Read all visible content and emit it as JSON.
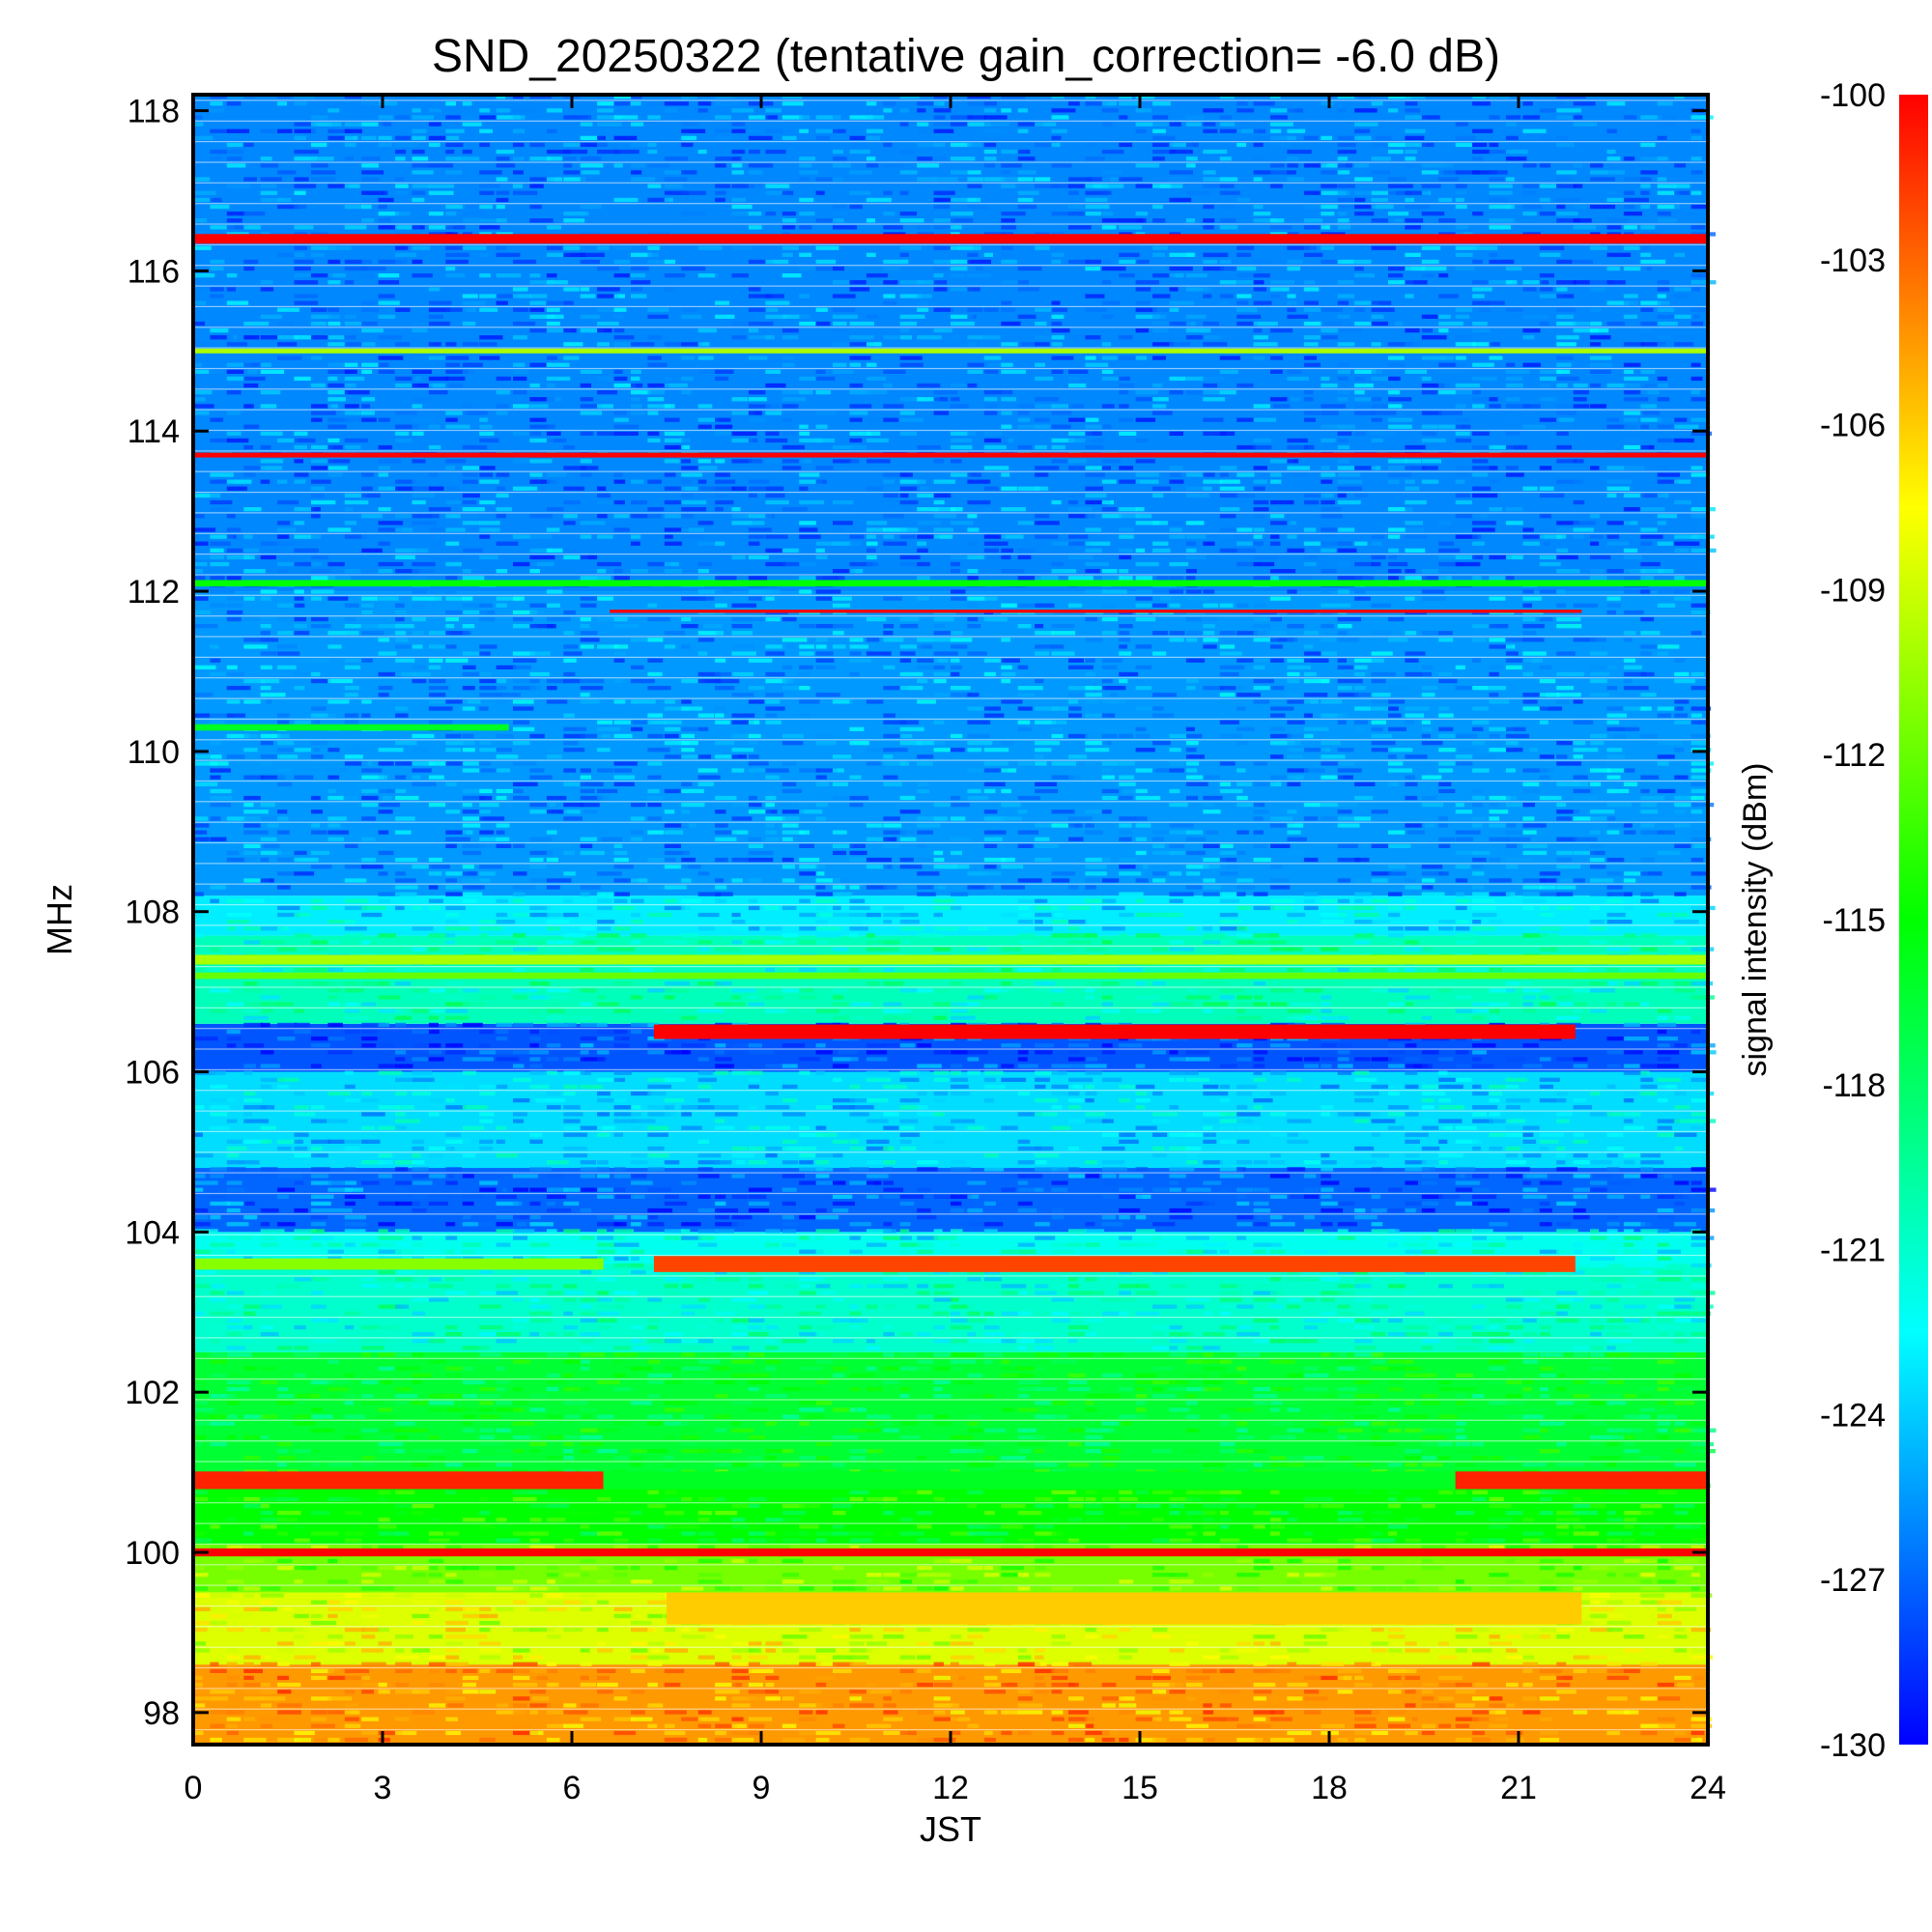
{
  "chart_data": {
    "type": "heatmap",
    "title": "SND_20250322 (tentative gain_correction= -6.0 dB)",
    "xlabel": "JST",
    "ylabel": "MHz",
    "colorbar_label": "signal intensity (dBm)",
    "xlim": [
      0,
      24
    ],
    "ylim": [
      97.6,
      118.2
    ],
    "clim": [
      -130,
      -100
    ],
    "x_ticks": [
      0,
      3,
      6,
      9,
      12,
      15,
      18,
      21,
      24
    ],
    "y_ticks": [
      98,
      100,
      102,
      104,
      106,
      108,
      110,
      112,
      114,
      116,
      118
    ],
    "colorbar_ticks": [
      -100,
      -103,
      -106,
      -109,
      -112,
      -115,
      -118,
      -121,
      -124,
      -127,
      -130
    ],
    "colormap": [
      "#0000ff",
      "#0080ff",
      "#00ffff",
      "#00ff80",
      "#00ff00",
      "#80ff00",
      "#ffff00",
      "#ff8000",
      "#ff0000"
    ],
    "background_bands": [
      {
        "f0": 97.6,
        "f1": 98.6,
        "level": -104.5
      },
      {
        "f0": 98.6,
        "f1": 99.5,
        "level": -108.5
      },
      {
        "f0": 99.5,
        "f1": 100.1,
        "level": -111.5
      },
      {
        "f0": 100.1,
        "f1": 101.0,
        "level": -115.0
      },
      {
        "f0": 101.0,
        "f1": 102.5,
        "level": -116.5
      },
      {
        "f0": 102.5,
        "f1": 103.6,
        "level": -121.0
      },
      {
        "f0": 103.6,
        "f1": 104.0,
        "level": -122.0
      },
      {
        "f0": 104.0,
        "f1": 104.8,
        "level": -127.0
      },
      {
        "f0": 104.8,
        "f1": 106.0,
        "level": -123.5
      },
      {
        "f0": 106.0,
        "f1": 106.6,
        "level": -127.5
      },
      {
        "f0": 106.6,
        "f1": 107.7,
        "level": -120.5
      },
      {
        "f0": 107.7,
        "f1": 108.2,
        "level": -123.0
      },
      {
        "f0": 108.2,
        "f1": 112.0,
        "level": -125.5
      },
      {
        "f0": 112.0,
        "f1": 118.2,
        "level": -126.0
      }
    ],
    "signals": [
      {
        "freq": 116.4,
        "t_start": 0,
        "t_end": 24,
        "level": -100,
        "bw": 0.12
      },
      {
        "freq": 115.0,
        "t_start": 0,
        "t_end": 24,
        "level": -110,
        "bw": 0.06
      },
      {
        "freq": 113.7,
        "t_start": 0,
        "t_end": 24,
        "level": -100,
        "bw": 0.06
      },
      {
        "freq": 112.1,
        "t_start": 0,
        "t_end": 24,
        "level": -115,
        "bw": 0.08
      },
      {
        "freq": 111.75,
        "t_start": 6.6,
        "t_end": 22.0,
        "level": -100,
        "bw": 0.04
      },
      {
        "freq": 110.3,
        "t_start": 0,
        "t_end": 5.0,
        "level": -116,
        "bw": 0.08
      },
      {
        "freq": 107.4,
        "t_start": 0,
        "t_end": 24,
        "level": -110,
        "bw": 0.12
      },
      {
        "freq": 107.2,
        "t_start": 0,
        "t_end": 24,
        "level": -112,
        "bw": 0.08
      },
      {
        "freq": 106.5,
        "t_start": 7.3,
        "t_end": 21.9,
        "level": -100,
        "bw": 0.18
      },
      {
        "freq": 103.6,
        "t_start": 7.3,
        "t_end": 21.9,
        "level": -102,
        "bw": 0.2
      },
      {
        "freq": 103.6,
        "t_start": 0,
        "t_end": 6.5,
        "level": -111,
        "bw": 0.14
      },
      {
        "freq": 100.9,
        "t_start": 0,
        "t_end": 6.5,
        "level": -101,
        "bw": 0.22
      },
      {
        "freq": 100.9,
        "t_start": 6.5,
        "t_end": 20.0,
        "level": -116,
        "bw": 0.22
      },
      {
        "freq": 100.9,
        "t_start": 20.0,
        "t_end": 24,
        "level": -101,
        "bw": 0.22
      },
      {
        "freq": 100.0,
        "t_start": 0,
        "t_end": 24,
        "level": -100,
        "bw": 0.1
      },
      {
        "freq": 99.3,
        "t_start": 7.5,
        "t_end": 22.0,
        "level": -106,
        "bw": 0.4
      }
    ]
  }
}
